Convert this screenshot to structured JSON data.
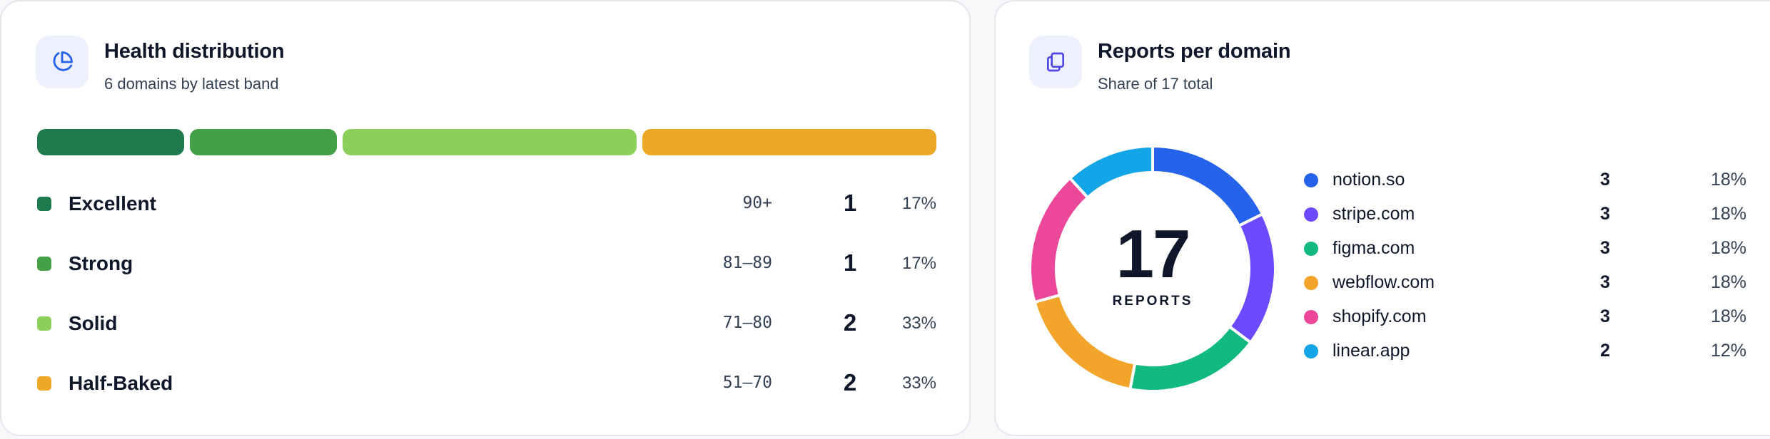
{
  "health": {
    "title": "Health distribution",
    "subtitle": "6 domains by latest band",
    "icon": "pie-chart-icon",
    "bands": [
      {
        "name": "Excellent",
        "range": "90+",
        "count": "1",
        "pct": "17%",
        "share": 0.1667,
        "color": "#1f7a4d"
      },
      {
        "name": "Strong",
        "range": "81–89",
        "count": "1",
        "pct": "17%",
        "share": 0.1667,
        "color": "#43a047"
      },
      {
        "name": "Solid",
        "range": "71–80",
        "count": "2",
        "pct": "33%",
        "share": 0.3333,
        "color": "#8ccf5a"
      },
      {
        "name": "Half-Baked",
        "range": "51–70",
        "count": "2",
        "pct": "33%",
        "share": 0.3333,
        "color": "#eca826"
      }
    ]
  },
  "reports": {
    "title": "Reports per domain",
    "subtitle": "Share of 17 total",
    "icon": "copy-icon",
    "total": "17",
    "total_label": "REPORTS",
    "domains": [
      {
        "name": "notion.so",
        "count": "3",
        "pct": "18%",
        "value": 3,
        "color": "#2563eb"
      },
      {
        "name": "stripe.com",
        "count": "3",
        "pct": "18%",
        "value": 3,
        "color": "#6d4aff"
      },
      {
        "name": "figma.com",
        "count": "3",
        "pct": "18%",
        "value": 3,
        "color": "#12b981"
      },
      {
        "name": "webflow.com",
        "count": "3",
        "pct": "18%",
        "value": 3,
        "color": "#f2a52a"
      },
      {
        "name": "shopify.com",
        "count": "3",
        "pct": "18%",
        "value": 3,
        "color": "#ec4899"
      },
      {
        "name": "linear.app",
        "count": "2",
        "pct": "12%",
        "value": 2,
        "color": "#14a5e6"
      }
    ]
  }
}
